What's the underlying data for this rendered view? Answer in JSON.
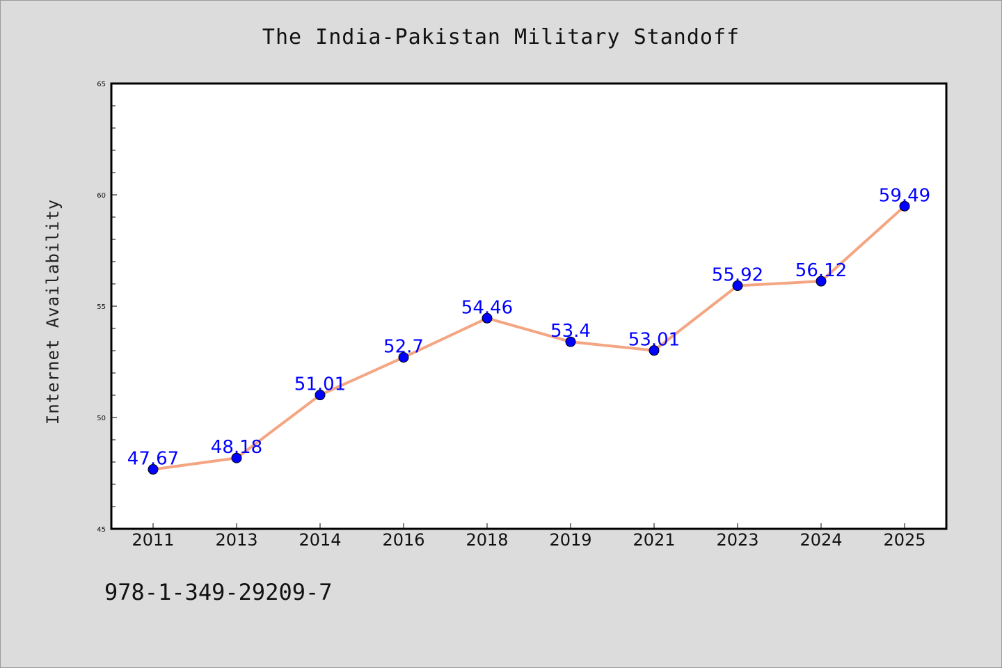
{
  "chart_data": {
    "type": "line",
    "title": "The India-Pakistan Military Standoff",
    "xlabel": "",
    "ylabel": "Internet Availability",
    "categories": [
      "2011",
      "2013",
      "2014",
      "2016",
      "2018",
      "2019",
      "2021",
      "2023",
      "2024",
      "2025"
    ],
    "series": [
      {
        "values": [
          47.67,
          48.18,
          51.01,
          52.7,
          54.46,
          53.4,
          53.01,
          55.92,
          56.12,
          59.49
        ],
        "data_labels": [
          "47.67",
          "48.18",
          "51.01",
          "52.7",
          "54.46",
          "53.4",
          "53.01",
          "55.92",
          "56.12",
          "59.49"
        ]
      }
    ],
    "ylim": [
      45,
      65
    ],
    "yticks": [
      "45",
      "50",
      "55",
      "60",
      "65"
    ],
    "grid": false,
    "legend": "none",
    "colors": {
      "line": "#f4a582",
      "marker": "#0000ff",
      "labels": "#0000ff",
      "background": "#dcdcdc",
      "plot_bg": "#ffffff"
    }
  },
  "footer": {
    "isbn": "978-1-349-29209-7"
  }
}
